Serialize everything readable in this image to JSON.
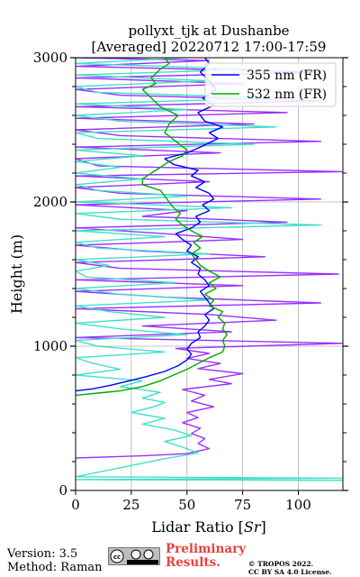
{
  "chart_data": {
    "type": "line",
    "title_line1": "pollyxt_tjk at Dushanbe",
    "title_line2": "[Averaged] 20220712 17:00-17:59",
    "xlabel": "Lidar Ratio [Sr]",
    "ylabel": "Height (m)",
    "xlim": [
      0,
      120
    ],
    "ylim": [
      0,
      3000
    ],
    "xticks": [
      "0",
      "25",
      "50",
      "75",
      "100"
    ],
    "yticks": [
      "0",
      "1000",
      "2000",
      "3000"
    ],
    "grid": true,
    "legend_position": "top-right",
    "series": [
      {
        "name": "355 nm (FR)",
        "color": "#0000ff",
        "points": [
          [
            0,
            690
          ],
          [
            8,
            705
          ],
          [
            16,
            730
          ],
          [
            24,
            760
          ],
          [
            32,
            790
          ],
          [
            40,
            825
          ],
          [
            46,
            865
          ],
          [
            50,
            905
          ],
          [
            52,
            945
          ],
          [
            50,
            980
          ],
          [
            52,
            1020
          ],
          [
            56,
            1060
          ],
          [
            55,
            1100
          ],
          [
            58,
            1140
          ],
          [
            60,
            1180
          ],
          [
            58,
            1220
          ],
          [
            62,
            1260
          ],
          [
            60,
            1300
          ],
          [
            58,
            1340
          ],
          [
            56,
            1380
          ],
          [
            60,
            1420
          ],
          [
            58,
            1460
          ],
          [
            55,
            1500
          ],
          [
            56,
            1540
          ],
          [
            52,
            1580
          ],
          [
            55,
            1620
          ],
          [
            50,
            1660
          ],
          [
            52,
            1700
          ],
          [
            48,
            1740
          ],
          [
            45,
            1780
          ],
          [
            52,
            1820
          ],
          [
            56,
            1860
          ],
          [
            54,
            1900
          ],
          [
            60,
            1940
          ],
          [
            57,
            1980
          ],
          [
            62,
            2020
          ],
          [
            60,
            2060
          ],
          [
            54,
            2100
          ],
          [
            58,
            2140
          ],
          [
            52,
            2180
          ],
          [
            55,
            2220
          ],
          [
            44,
            2260
          ],
          [
            40,
            2300
          ],
          [
            50,
            2340
          ],
          [
            56,
            2380
          ],
          [
            60,
            2410
          ],
          [
            64,
            2440
          ],
          [
            60,
            2480
          ],
          [
            66,
            2520
          ],
          [
            58,
            2560
          ],
          [
            55,
            2620
          ],
          [
            62,
            2670
          ],
          [
            57,
            2720
          ],
          [
            63,
            2780
          ],
          [
            60,
            2840
          ],
          [
            56,
            2900
          ],
          [
            60,
            2960
          ],
          [
            58,
            3000
          ]
        ]
      },
      {
        "name": "532 nm (FR)",
        "color": "#00aa00",
        "points": [
          [
            0,
            660
          ],
          [
            10,
            675
          ],
          [
            20,
            690
          ],
          [
            30,
            720
          ],
          [
            38,
            760
          ],
          [
            44,
            800
          ],
          [
            50,
            840
          ],
          [
            55,
            880
          ],
          [
            60,
            920
          ],
          [
            66,
            960
          ],
          [
            67,
            1000
          ],
          [
            66,
            1040
          ],
          [
            68,
            1080
          ],
          [
            66,
            1120
          ],
          [
            67,
            1160
          ],
          [
            64,
            1200
          ],
          [
            66,
            1240
          ],
          [
            60,
            1280
          ],
          [
            62,
            1320
          ],
          [
            58,
            1360
          ],
          [
            63,
            1400
          ],
          [
            60,
            1440
          ],
          [
            65,
            1480
          ],
          [
            60,
            1520
          ],
          [
            56,
            1560
          ],
          [
            54,
            1600
          ],
          [
            52,
            1640
          ],
          [
            56,
            1680
          ],
          [
            53,
            1720
          ],
          [
            57,
            1760
          ],
          [
            52,
            1800
          ],
          [
            48,
            1840
          ],
          [
            45,
            1880
          ],
          [
            47,
            1920
          ],
          [
            44,
            1960
          ],
          [
            42,
            2000
          ],
          [
            40,
            2040
          ],
          [
            38,
            2080
          ],
          [
            30,
            2120
          ],
          [
            30,
            2160
          ],
          [
            34,
            2200
          ],
          [
            38,
            2240
          ],
          [
            42,
            2280
          ],
          [
            48,
            2320
          ],
          [
            50,
            2360
          ],
          [
            45,
            2420
          ],
          [
            40,
            2480
          ],
          [
            42,
            2540
          ],
          [
            46,
            2600
          ],
          [
            38,
            2660
          ],
          [
            34,
            2720
          ],
          [
            30,
            2780
          ],
          [
            36,
            2820
          ],
          [
            34,
            2860
          ],
          [
            38,
            2920
          ],
          [
            42,
            2960
          ],
          [
            40,
            3000
          ]
        ]
      },
      {
        "name": "",
        "color": "#9b30ff",
        "points": [
          [
            0,
            225
          ],
          [
            30,
            240
          ],
          [
            50,
            255
          ],
          [
            60,
            290
          ],
          [
            55,
            325
          ],
          [
            58,
            360
          ],
          [
            52,
            395
          ],
          [
            56,
            430
          ],
          [
            48,
            470
          ],
          [
            55,
            505
          ],
          [
            50,
            540
          ],
          [
            62,
            580
          ],
          [
            52,
            620
          ],
          [
            58,
            660
          ],
          [
            48,
            700
          ],
          [
            70,
            740
          ],
          [
            60,
            770
          ],
          [
            75,
            810
          ],
          [
            55,
            845
          ],
          [
            65,
            880
          ],
          [
            50,
            915
          ],
          [
            60,
            950
          ],
          [
            45,
            985
          ],
          [
            120,
            1020
          ],
          [
            0,
            1060
          ],
          [
            70,
            1100
          ],
          [
            30,
            1140
          ],
          [
            90,
            1180
          ],
          [
            60,
            1220
          ],
          [
            0,
            1260
          ],
          [
            110,
            1300
          ],
          [
            40,
            1340
          ],
          [
            0,
            1380
          ],
          [
            75,
            1420
          ],
          [
            0,
            1460
          ],
          [
            118,
            1500
          ],
          [
            20,
            1540
          ],
          [
            0,
            1580
          ],
          [
            85,
            1620
          ],
          [
            30,
            1660
          ],
          [
            0,
            1700
          ],
          [
            75,
            1740
          ],
          [
            40,
            1780
          ],
          [
            0,
            1820
          ],
          [
            95,
            1860
          ],
          [
            30,
            1900
          ],
          [
            50,
            1940
          ],
          [
            0,
            1980
          ],
          [
            110,
            2020
          ],
          [
            20,
            2060
          ],
          [
            0,
            2100
          ],
          [
            60,
            2140
          ],
          [
            0,
            2180
          ],
          [
            120,
            2210
          ],
          [
            10,
            2250
          ],
          [
            0,
            2300
          ],
          [
            65,
            2340
          ],
          [
            0,
            2380
          ],
          [
            110,
            2420
          ],
          [
            20,
            2460
          ],
          [
            0,
            2500
          ],
          [
            80,
            2540
          ],
          [
            0,
            2580
          ],
          [
            95,
            2620
          ],
          [
            0,
            2660
          ],
          [
            110,
            2700
          ],
          [
            20,
            2740
          ],
          [
            0,
            2780
          ],
          [
            75,
            2820
          ],
          [
            0,
            2860
          ],
          [
            110,
            2900
          ],
          [
            0,
            2940
          ],
          [
            60,
            2980
          ],
          [
            0,
            3000
          ]
        ]
      },
      {
        "name": "",
        "color": "#40e0c8",
        "points": [
          [
            120,
            70
          ],
          [
            0,
            75
          ],
          [
            120,
            85
          ],
          [
            0,
            95
          ],
          [
            40,
            220
          ],
          [
            55,
            260
          ],
          [
            48,
            300
          ],
          [
            40,
            340
          ],
          [
            52,
            380
          ],
          [
            44,
            420
          ],
          [
            30,
            460
          ],
          [
            40,
            500
          ],
          [
            25,
            540
          ],
          [
            35,
            580
          ],
          [
            40,
            610
          ],
          [
            30,
            640
          ],
          [
            38,
            680
          ],
          [
            20,
            720
          ],
          [
            30,
            760
          ],
          [
            0,
            800
          ],
          [
            20,
            840
          ],
          [
            8,
            880
          ],
          [
            0,
            920
          ],
          [
            40,
            960
          ],
          [
            10,
            1000
          ],
          [
            0,
            1040
          ],
          [
            50,
            1080
          ],
          [
            20,
            1120
          ],
          [
            0,
            1160
          ],
          [
            40,
            1200
          ],
          [
            15,
            1240
          ],
          [
            0,
            1280
          ],
          [
            60,
            1320
          ],
          [
            20,
            1360
          ],
          [
            0,
            1400
          ],
          [
            45,
            1440
          ],
          [
            5,
            1480
          ],
          [
            0,
            1520
          ],
          [
            15,
            1560
          ],
          [
            0,
            1600
          ],
          [
            60,
            1640
          ],
          [
            10,
            1680
          ],
          [
            0,
            1720
          ],
          [
            40,
            1760
          ],
          [
            0,
            1800
          ],
          [
            110,
            1840
          ],
          [
            20,
            1880
          ],
          [
            0,
            1920
          ],
          [
            70,
            1960
          ],
          [
            0,
            2000
          ],
          [
            50,
            2040
          ],
          [
            10,
            2080
          ],
          [
            0,
            2120
          ],
          [
            30,
            2160
          ],
          [
            0,
            2200
          ],
          [
            20,
            2240
          ],
          [
            0,
            2280
          ],
          [
            30,
            2320
          ],
          [
            0,
            2360
          ],
          [
            80,
            2400
          ],
          [
            10,
            2440
          ],
          [
            0,
            2480
          ],
          [
            90,
            2520
          ],
          [
            20,
            2560
          ],
          [
            0,
            2600
          ],
          [
            50,
            2640
          ],
          [
            0,
            2680
          ],
          [
            90,
            2720
          ],
          [
            10,
            2760
          ],
          [
            0,
            2800
          ],
          [
            60,
            2840
          ],
          [
            0,
            2880
          ],
          [
            80,
            2920
          ],
          [
            0,
            2960
          ],
          [
            50,
            3000
          ]
        ]
      }
    ]
  },
  "footer": {
    "version": "Version: 3.5",
    "method": "Method: Raman",
    "cc_label": "cc BY SA",
    "preliminary_line1": "Preliminary",
    "preliminary_line2": "Results.",
    "tropos_line1": "© TROPOS 2022.",
    "tropos_line2": "CC BY SA 4.0 License."
  }
}
